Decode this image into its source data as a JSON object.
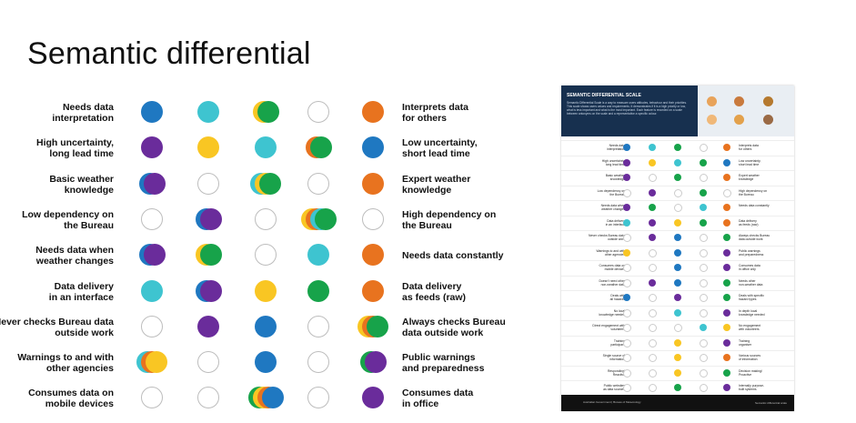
{
  "title": "Semantic differential",
  "colors": {
    "blue": "#1f78c1",
    "teal": "#3ec4d0",
    "yellow": "#f9c623",
    "green": "#17a34a",
    "orange": "#e8731f",
    "purple": "#6a2c9b"
  },
  "rows": [
    {
      "left": "Needs data\ninterpretation",
      "right": "Interprets data\nfor others",
      "cells": [
        [
          "blue"
        ],
        [
          "teal"
        ],
        [
          "yellow",
          "green"
        ],
        [],
        [
          "orange"
        ]
      ]
    },
    {
      "left": "High uncertainty,\nlong lead time",
      "right": "Low uncertainty,\nshort lead time",
      "cells": [
        [
          "purple"
        ],
        [
          "yellow"
        ],
        [
          "teal"
        ],
        [
          "orange",
          "green"
        ],
        [
          "blue"
        ]
      ]
    },
    {
      "left": "Basic weather\nknowledge",
      "right": "Expert weather\nknowledge",
      "cells": [
        [
          "blue",
          "purple"
        ],
        [],
        [
          "teal",
          "yellow",
          "green"
        ],
        [],
        [
          "orange"
        ]
      ]
    },
    {
      "left": "Low dependency on\nthe Bureau",
      "right": "High dependency on\nthe Bureau",
      "cells": [
        [],
        [
          "blue",
          "purple"
        ],
        [],
        [
          "yellow",
          "orange",
          "teal",
          "green"
        ],
        []
      ]
    },
    {
      "left": "Needs data when\nweather changes",
      "right": "Needs data constantly",
      "cells": [
        [
          "blue",
          "purple"
        ],
        [
          "yellow",
          "green"
        ],
        [],
        [
          "teal"
        ],
        [
          "orange"
        ]
      ]
    },
    {
      "left": "Data delivery\nin an interface",
      "right": "Data delivery\nas feeds (raw)",
      "cells": [
        [
          "teal"
        ],
        [
          "blue",
          "purple"
        ],
        [
          "yellow"
        ],
        [
          "green"
        ],
        [
          "orange"
        ]
      ]
    },
    {
      "left": "Never checks Bureau data\noutside work",
      "right": "Always checks Bureau\ndata outside work",
      "cells": [
        [],
        [
          "purple"
        ],
        [
          "blue"
        ],
        [],
        [
          "yellow",
          "orange",
          "green"
        ]
      ]
    },
    {
      "left": "Warnings to and with\nother agencies",
      "right": "Public warnings\nand preparedness",
      "cells": [
        [
          "teal",
          "orange",
          "yellow"
        ],
        [],
        [
          "blue"
        ],
        [],
        [
          "green",
          "purple"
        ]
      ]
    },
    {
      "left": "Consumes data on\nmobile devices",
      "right": "Consumes data\nin office",
      "cells": [
        [],
        [],
        [
          "green",
          "yellow",
          "orange",
          "blue"
        ],
        [],
        [
          "purple"
        ]
      ]
    }
  ],
  "poster": {
    "header_title": "SEMANTIC DIFFERENTIAL SCALE",
    "header_text": "Semantic Differential Scale is a way to measure users attitudes, behaviour and their priorities. This scale shows users values and requirements. It demonstrates if it is a high priority or low, what is less important and what is the most important. Each feature is recorded on a scale between antonyms on the scale and a representative a specific colour.",
    "rows": [
      {
        "left": "Needs data\ninterpretation",
        "right": "Interprets data\nfor others",
        "cells": [
          [
            "blue"
          ],
          [
            "teal"
          ],
          [
            "green"
          ],
          [],
          [
            "orange"
          ]
        ]
      },
      {
        "left": "High uncertainty,\nlong lead time",
        "right": "Low uncertainty,\nshort lead time",
        "cells": [
          [
            "purple"
          ],
          [
            "yellow"
          ],
          [
            "teal"
          ],
          [
            "green"
          ],
          [
            "blue"
          ]
        ]
      },
      {
        "left": "Basic weather\nknowledge",
        "right": "Expert weather\nknowledge",
        "cells": [
          [
            "purple"
          ],
          [],
          [
            "green"
          ],
          [],
          [
            "orange"
          ]
        ]
      },
      {
        "left": "Low dependency on\nthe Bureau",
        "right": "High dependency on\nthe Bureau",
        "cells": [
          [],
          [
            "purple"
          ],
          [],
          [
            "green"
          ],
          []
        ]
      },
      {
        "left": "Needs data when\nweather changes",
        "right": "Needs data constantly",
        "cells": [
          [
            "purple"
          ],
          [
            "green"
          ],
          [],
          [
            "teal"
          ],
          [
            "orange"
          ]
        ]
      },
      {
        "left": "Data delivery\nin an interface",
        "right": "Data delivery\nas feeds (raw)",
        "cells": [
          [
            "teal"
          ],
          [
            "purple"
          ],
          [
            "yellow"
          ],
          [
            "green"
          ],
          [
            "orange"
          ]
        ]
      },
      {
        "left": "Never checks Bureau data\noutside work",
        "right": "Always checks Bureau\ndata outside work",
        "cells": [
          [],
          [
            "purple"
          ],
          [
            "blue"
          ],
          [],
          [
            "green"
          ]
        ]
      },
      {
        "left": "Warnings to and with\nother agencies",
        "right": "Public warnings\nand preparedness",
        "cells": [
          [
            "yellow"
          ],
          [],
          [
            "blue"
          ],
          [],
          [
            "purple"
          ]
        ]
      },
      {
        "left": "Consumes data on\nmobile devices",
        "right": "Consumes data\nin office only",
        "cells": [
          [],
          [],
          [
            "blue"
          ],
          [],
          [
            "purple"
          ]
        ]
      },
      {
        "left": "Doesn't need other\nnon-weather data",
        "right": "Needs other\nnon-weather data",
        "cells": [
          [],
          [
            "purple"
          ],
          [
            "blue"
          ],
          [],
          [
            "green"
          ]
        ]
      },
      {
        "left": "Deals with\nall hazards",
        "right": "Deals with specific\nhazard types",
        "cells": [
          [
            "blue"
          ],
          [],
          [
            "purple"
          ],
          [],
          [
            "green"
          ]
        ]
      },
      {
        "left": "No local\nknowledge needed",
        "right": "In depth local\nknowledge needed",
        "cells": [
          [],
          [],
          [
            "teal"
          ],
          [],
          [
            "purple"
          ]
        ]
      },
      {
        "left": "Direct engagement with\nvolunteers",
        "right": "No engagement\nwith volunteers",
        "cells": [
          [],
          [],
          [],
          [
            "teal"
          ],
          [
            "yellow"
          ]
        ]
      },
      {
        "left": "Training\nparticipant",
        "right": "Training\norganiser",
        "cells": [
          [],
          [],
          [
            "yellow"
          ],
          [],
          [
            "purple"
          ]
        ]
      },
      {
        "left": "Single source of\ninformation",
        "right": "Various sources\nof information",
        "cells": [
          [],
          [],
          [
            "yellow"
          ],
          [],
          [
            "orange"
          ]
        ]
      },
      {
        "left": "Responding/\nReactive",
        "right": "Decision making/\nProactive",
        "cells": [
          [],
          [],
          [
            "yellow"
          ],
          [],
          [
            "green"
          ]
        ]
      },
      {
        "left": "Public websites\nas data sources",
        "right": "Internally purpose-\nbuilt systems",
        "cells": [
          [],
          [],
          [
            "green"
          ],
          [],
          [
            "purple"
          ]
        ]
      }
    ],
    "footer_left": "Australian Government  |  Bureau of Meteorology",
    "footer_right": "Semantic differential scale"
  }
}
